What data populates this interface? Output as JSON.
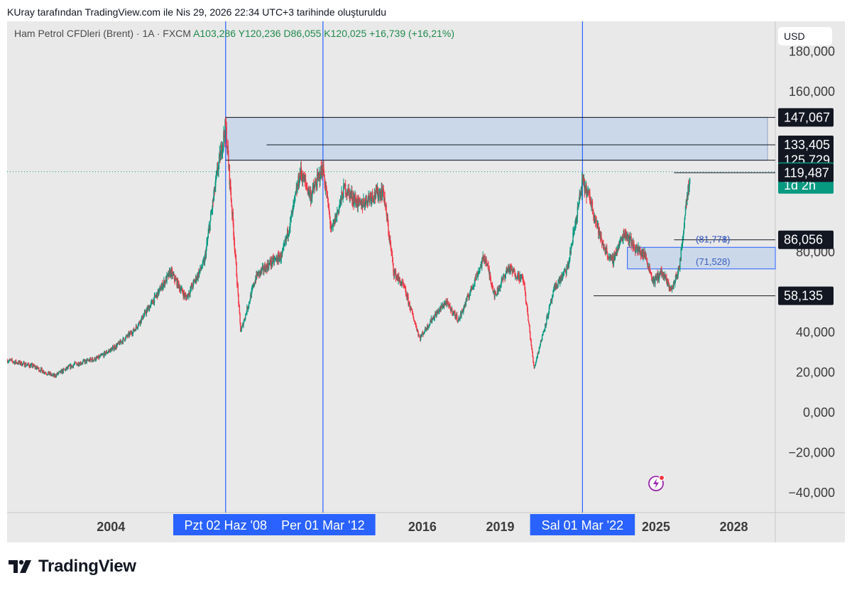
{
  "header": {
    "attribution": "KUray tarafından TradingView.com ile Nis 29, 2026 22:34 UTC+3 tarihinde oluşturuldu"
  },
  "legend": {
    "symbol": "Ham Petrol CFDleri (Brent) · 1A · FXCM",
    "ohlc": "A103,286  Y120,236  D86,055  K120,025  +16,739 (+16,21%)"
  },
  "currency": "USD",
  "footer": {
    "brand": "TradingView"
  },
  "icons": {
    "logo": "tradingview-logo-icon",
    "lightning": "lightning-icon"
  },
  "colors": {
    "up": "#089981",
    "down": "#f23645",
    "vline": "#2962ff",
    "box": "#bcd0ea",
    "price_tag": "#089981",
    "dark_tag": "#131722",
    "date_tag": "#2962ff",
    "background": "#e9e9e9"
  },
  "chart_data": {
    "type": "candlestick",
    "timeframe": "1A",
    "y_axis": {
      "range": [
        -50000,
        195000
      ],
      "ticks": [
        -40000,
        -20000,
        0,
        20000,
        40000,
        60000,
        80000,
        100000,
        120000,
        140000,
        160000,
        180000
      ],
      "tick_labels": [
        "−40,000",
        "−20,000",
        "0,000",
        "20,000",
        "40,000",
        "",
        "80,000",
        "",
        "",
        "",
        "160,000",
        "180,000"
      ]
    },
    "x_axis": {
      "range": [
        2000.0,
        2029.6
      ],
      "ticks": [
        2004,
        2016,
        2019,
        2025,
        2028
      ],
      "tick_labels": [
        "2004",
        "2016",
        "2019",
        "2025",
        "2028"
      ]
    },
    "vertical_lines": [
      {
        "x": 2008.42,
        "label": "Pzt 02 Haz '08"
      },
      {
        "x": 2012.17,
        "label": "Per 01 Mar '12"
      },
      {
        "x": 2022.17,
        "label": "Sal 01 Mar '22"
      }
    ],
    "zones": [
      {
        "x0": 2008.42,
        "x1": 2029.3,
        "y0": 125729,
        "y1": 147067
      },
      {
        "x0": 2023.9,
        "x1": 2029.6,
        "y0": 71528,
        "y1": 82300
      }
    ],
    "horizontal_lines": [
      {
        "x0": 2008.42,
        "y": 147067
      },
      {
        "x0": 2010.0,
        "y": 133405
      },
      {
        "x0": 2008.42,
        "y": 125729
      },
      {
        "x0": 2025.7,
        "y": 119487
      },
      {
        "x0": 2025.7,
        "y": 86056
      },
      {
        "x0": 2022.6,
        "y": 58135
      }
    ],
    "price_labels": [
      {
        "value": 147067,
        "text": "147,067",
        "style": "dark"
      },
      {
        "value": 133405,
        "text": "133,405",
        "style": "dark"
      },
      {
        "value": 125729,
        "text": "125,729",
        "style": "dark"
      },
      {
        "value": 120025,
        "text": "120,025",
        "sub": "1d 2h",
        "style": "green"
      },
      {
        "value": 119487,
        "text": "119,487",
        "style": "dark"
      },
      {
        "value": 86056,
        "text": "86,056",
        "style": "dark"
      },
      {
        "value": 58135,
        "text": "58,135",
        "style": "dark"
      }
    ],
    "annotations": [
      {
        "x": 2027.2,
        "y": 86056,
        "text": "(81,771)"
      },
      {
        "x": 2027.2,
        "y": 86056,
        "text": "(81,778)"
      },
      {
        "x": 2027.2,
        "y": 75000,
        "text": "(71,528)"
      }
    ],
    "last_price": 120025,
    "series_anchors": [
      [
        2000.0,
        26
      ],
      [
        2001.0,
        23
      ],
      [
        2001.8,
        18
      ],
      [
        2002.6,
        24
      ],
      [
        2003.5,
        27
      ],
      [
        2004.2,
        33
      ],
      [
        2004.9,
        41
      ],
      [
        2005.6,
        55
      ],
      [
        2006.3,
        70
      ],
      [
        2006.9,
        57
      ],
      [
        2007.6,
        75
      ],
      [
        2008.1,
        120
      ],
      [
        2008.42,
        143
      ],
      [
        2008.7,
        95
      ],
      [
        2009.0,
        40
      ],
      [
        2009.6,
        68
      ],
      [
        2010.2,
        75
      ],
      [
        2010.6,
        78
      ],
      [
        2011.0,
        100
      ],
      [
        2011.3,
        120
      ],
      [
        2011.7,
        108
      ],
      [
        2012.17,
        122
      ],
      [
        2012.5,
        90
      ],
      [
        2013.0,
        112
      ],
      [
        2013.6,
        103
      ],
      [
        2014.0,
        108
      ],
      [
        2014.5,
        110
      ],
      [
        2014.9,
        70
      ],
      [
        2015.3,
        62
      ],
      [
        2015.9,
        37
      ],
      [
        2016.4,
        47
      ],
      [
        2016.9,
        55
      ],
      [
        2017.4,
        46
      ],
      [
        2017.9,
        62
      ],
      [
        2018.4,
        78
      ],
      [
        2018.8,
        58
      ],
      [
        2019.3,
        72
      ],
      [
        2019.9,
        66
      ],
      [
        2020.3,
        22
      ],
      [
        2020.7,
        42
      ],
      [
        2021.1,
        62
      ],
      [
        2021.6,
        72
      ],
      [
        2022.17,
        115
      ],
      [
        2022.5,
        105
      ],
      [
        2022.9,
        85
      ],
      [
        2023.3,
        75
      ],
      [
        2023.8,
        90
      ],
      [
        2024.2,
        82
      ],
      [
        2024.6,
        78
      ],
      [
        2024.9,
        65
      ],
      [
        2025.2,
        70
      ],
      [
        2025.6,
        61
      ],
      [
        2025.9,
        72
      ],
      [
        2026.0,
        83
      ],
      [
        2026.15,
        104
      ],
      [
        2026.33,
        120
      ]
    ]
  }
}
